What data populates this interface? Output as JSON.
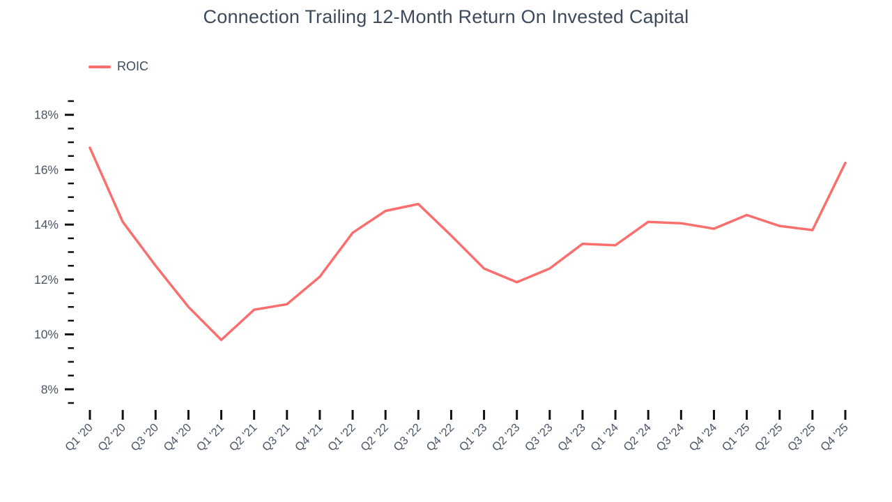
{
  "title": "Connection Trailing 12-Month Return On Invested Capital",
  "legend": {
    "items": [
      {
        "label": "ROIC",
        "swatch": "line",
        "color": "#fa6e6e"
      }
    ]
  },
  "colors": {
    "background": "#ffffff",
    "title_text": "#3d4a5c",
    "axis_label_text": "#4a5566",
    "tick_mark": "#111111",
    "series_line": "#fa6e6e"
  },
  "chart_data": {
    "type": "line",
    "title": "Connection Trailing 12-Month Return On Invested Capital",
    "xlabel": "",
    "ylabel": "",
    "y_unit": "%",
    "ylim": [
      7.5,
      18.5
    ],
    "y_major_ticks": [
      8,
      10,
      12,
      14,
      16,
      18
    ],
    "y_minor_step": 0.5,
    "grid": false,
    "legend_position": "top-left",
    "categories": [
      "Q1 '20",
      "Q2 '20",
      "Q3 '20",
      "Q4 '20",
      "Q1 '21",
      "Q2 '21",
      "Q3 '21",
      "Q4 '21",
      "Q1 '22",
      "Q2 '22",
      "Q3 '22",
      "Q4 '22",
      "Q1 '23",
      "Q2 '23",
      "Q3 '23",
      "Q4 '23",
      "Q1 '24",
      "Q2 '24",
      "Q3 '24",
      "Q4 '24",
      "Q1 '25",
      "Q2 '25",
      "Q3 '25",
      "Q4 '25"
    ],
    "series": [
      {
        "name": "ROIC",
        "color": "#fa6e6e",
        "values": [
          16.8,
          14.1,
          12.5,
          11.0,
          9.8,
          10.9,
          11.1,
          12.1,
          13.7,
          14.5,
          14.75,
          13.6,
          12.4,
          11.9,
          12.4,
          13.3,
          13.25,
          14.1,
          14.05,
          13.85,
          14.35,
          13.95,
          13.8,
          16.25
        ]
      }
    ]
  }
}
